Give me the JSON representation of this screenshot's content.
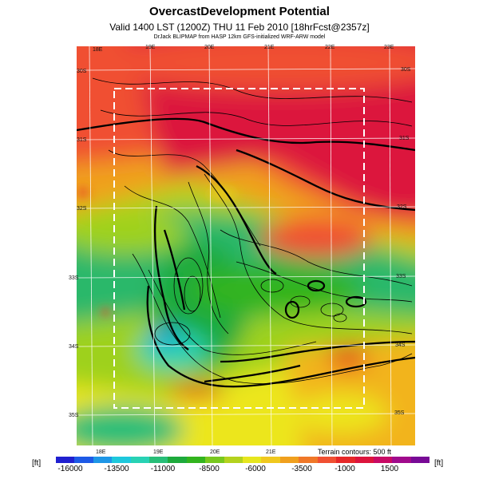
{
  "header": {
    "title": "OvercastDevelopment Potential",
    "valid_line": "Valid 1400 LST (1200Z) THU 11 Feb 2010 [18hrFcst@2357z]",
    "source_line": "DrJack BLIPMAP from HASP 12km GFS-initialized WRF-ARW model"
  },
  "map": {
    "lon_labels_top": [
      "18E",
      "19E",
      "20E",
      "21E",
      "22E",
      "23E"
    ],
    "lon_labels_bottom": [
      "18E",
      "19E",
      "20E",
      "21E"
    ],
    "lat_labels_left": [
      "30S",
      "31S",
      "32S",
      "33S",
      "34S",
      "35S"
    ],
    "lat_labels_right": [
      "30S",
      "31S",
      "32S",
      "33S",
      "34S",
      "35S"
    ],
    "terrain_note": "Terrain contours: 500 ft"
  },
  "legend": {
    "unit_left": "[ft]",
    "unit_right": "[ft]",
    "tick_labels": [
      "-16000",
      "-13500",
      "-11000",
      "-8500",
      "-6000",
      "-3500",
      "-1000",
      "1500"
    ],
    "colors": [
      "#2020d0",
      "#1e5ae6",
      "#1e96e6",
      "#1ec8dc",
      "#28d2b4",
      "#28be78",
      "#1eaa3c",
      "#32b41e",
      "#78c81e",
      "#b4d21e",
      "#e6e61e",
      "#f0c81e",
      "#f0a01e",
      "#f07828",
      "#f05032",
      "#e62828",
      "#dc143c",
      "#c80a64",
      "#a00a8c",
      "#780a96"
    ]
  }
}
